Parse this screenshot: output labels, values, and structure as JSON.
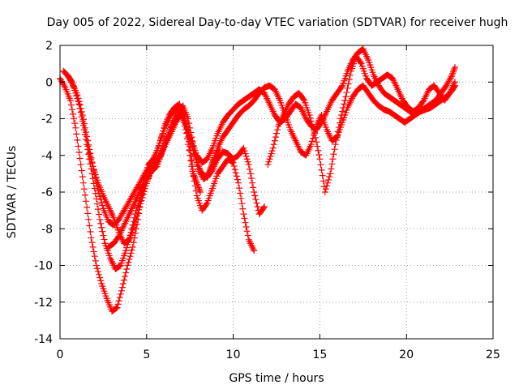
{
  "chart_data": {
    "type": "scatter",
    "title": "Day 005 of 2022, Sidereal Day-to-day VTEC variation (SDTVAR) for receiver hugh",
    "xlabel": "GPS time / hours",
    "ylabel": "SDTVAR / TECUs",
    "xlim": [
      0,
      25
    ],
    "ylim": [
      -14,
      2
    ],
    "xticks": [
      0,
      5,
      10,
      15,
      20,
      25
    ],
    "yticks": [
      -14,
      -12,
      -10,
      -8,
      -6,
      -4,
      -2,
      0,
      2
    ],
    "grid": true,
    "marker": "+",
    "color": "#ff0000",
    "series": [
      {
        "x": [
          0.0,
          0.3,
          0.6,
          0.9,
          1.2,
          1.5,
          1.8,
          2.1,
          2.4,
          2.7,
          3.0,
          3.3,
          3.6,
          3.9,
          4.2,
          4.5,
          4.8,
          5.1,
          5.4,
          5.7,
          6.0,
          6.3,
          6.6,
          6.9,
          7.2,
          7.5,
          7.7,
          7.9,
          8.1
        ],
        "y": [
          0.2,
          -0.3,
          -1.0,
          -2.5,
          -4.5,
          -6.5,
          -8.5,
          -10.0,
          -11.0,
          -11.8,
          -12.5,
          -12.3,
          -11.2,
          -10.0,
          -9.0,
          -7.5,
          -5.5,
          -4.5,
          -4.2,
          -3.5,
          -2.5,
          -1.8,
          -1.4,
          -1.2,
          -2.0,
          -3.5,
          -5.0,
          -5.5,
          -6.0
        ]
      },
      {
        "x": [
          0.2,
          0.5,
          0.8,
          1.1,
          1.4,
          1.7,
          2.0,
          2.3,
          2.6,
          2.9,
          3.2,
          3.5,
          3.8,
          4.1,
          4.4,
          4.7,
          5.0,
          5.3,
          5.6,
          5.9,
          6.2,
          6.5,
          6.8,
          7.1,
          7.4,
          7.7,
          8.0,
          8.3,
          8.6,
          8.9,
          9.2
        ],
        "y": [
          0.6,
          0.3,
          -0.3,
          -1.2,
          -2.6,
          -4.2,
          -5.8,
          -7.5,
          -8.8,
          -9.6,
          -10.2,
          -10.0,
          -9.2,
          -8.2,
          -7.0,
          -6.2,
          -5.4,
          -4.8,
          -4.6,
          -3.8,
          -3.0,
          -2.2,
          -1.6,
          -1.3,
          -2.0,
          -3.5,
          -4.8,
          -5.3,
          -5.0,
          -4.2,
          -3.6
        ]
      },
      {
        "x": [
          0.4,
          0.7,
          1.0,
          1.3,
          1.6,
          1.9,
          2.2,
          2.5,
          2.8,
          3.1,
          3.4,
          3.7,
          4.0,
          4.3,
          4.6,
          4.9,
          5.2,
          5.5,
          5.8,
          6.1,
          6.4,
          6.7,
          7.0,
          7.3,
          7.6,
          7.9,
          8.2,
          8.5,
          8.8,
          9.1,
          9.4,
          9.7,
          10.0,
          10.3,
          10.6,
          10.9,
          11.2
        ],
        "y": [
          0.4,
          0.0,
          -0.7,
          -1.8,
          -3.2,
          -4.6,
          -5.9,
          -6.9,
          -7.6,
          -7.8,
          -7.5,
          -7.0,
          -6.5,
          -6.0,
          -5.5,
          -5.0,
          -4.5,
          -4.0,
          -3.2,
          -2.4,
          -1.8,
          -1.4,
          -1.6,
          -2.8,
          -4.6,
          -6.2,
          -7.0,
          -6.6,
          -5.8,
          -5.0,
          -4.6,
          -4.2,
          -4.4,
          -5.5,
          -7.2,
          -8.6,
          -9.2
        ]
      },
      {
        "x": [
          1.6,
          1.9,
          2.2,
          2.5,
          2.8,
          3.1,
          3.4,
          3.7,
          4.0,
          4.3,
          4.6,
          4.9,
          5.2,
          5.5,
          5.8,
          6.1,
          6.4,
          6.7,
          7.0,
          7.3,
          7.6,
          7.9,
          8.2,
          8.5,
          8.8,
          9.1,
          9.4,
          9.7,
          10.0,
          10.3,
          10.6,
          10.9,
          11.2,
          11.5,
          11.8
        ],
        "y": [
          -3.5,
          -4.6,
          -5.5,
          -6.2,
          -6.8,
          -7.4,
          -8.2,
          -8.8,
          -8.6,
          -7.8,
          -6.8,
          -5.8,
          -5.0,
          -4.6,
          -4.0,
          -3.2,
          -2.5,
          -2.0,
          -1.8,
          -2.4,
          -3.4,
          -4.4,
          -5.0,
          -5.2,
          -4.8,
          -4.2,
          -3.8,
          -3.9,
          -4.2,
          -4.0,
          -3.6,
          -4.5,
          -6.0,
          -7.2,
          -6.8
        ]
      },
      {
        "x": [
          2.8,
          3.1,
          3.4,
          3.7,
          4.0,
          4.3,
          4.6,
          4.9,
          5.2,
          5.5,
          5.8,
          6.1,
          6.4,
          6.7,
          7.0,
          7.3,
          7.6,
          7.9,
          8.2,
          8.5,
          8.8,
          9.1,
          9.4,
          9.7,
          10.0,
          10.3,
          10.6,
          10.9,
          11.2,
          11.5,
          11.8,
          12.1,
          12.4,
          12.7,
          13.0,
          13.3,
          13.6,
          13.9,
          14.2,
          14.5,
          14.8,
          15.1,
          15.4,
          15.7,
          16.0,
          16.3,
          16.6,
          16.9,
          17.2,
          17.5,
          17.8,
          18.1,
          18.4,
          18.7,
          19.0,
          19.3,
          19.6,
          19.9,
          20.2,
          20.5,
          20.8,
          21.1,
          21.4,
          21.7,
          22.0,
          22.3,
          22.6,
          22.8
        ],
        "y": [
          -9.0,
          -8.8,
          -8.4,
          -7.8,
          -7.2,
          -6.6,
          -6.0,
          -5.4,
          -4.8,
          -4.4,
          -4.0,
          -3.4,
          -2.8,
          -2.2,
          -1.7,
          -2.3,
          -3.2,
          -4.0,
          -4.4,
          -4.2,
          -3.6,
          -2.8,
          -2.2,
          -1.8,
          -1.5,
          -1.2,
          -1.0,
          -0.8,
          -0.6,
          -0.4,
          -0.6,
          -1.2,
          -1.8,
          -2.2,
          -2.0,
          -1.6,
          -1.2,
          -1.4,
          -2.0,
          -2.4,
          -2.6,
          -2.2,
          -1.6,
          -1.0,
          -0.6,
          -0.2,
          0.6,
          1.2,
          1.6,
          1.8,
          1.2,
          0.4,
          -0.2,
          -0.6,
          -0.8,
          -1.0,
          -1.2,
          -1.4,
          -1.6,
          -1.7,
          -1.6,
          -1.4,
          -1.2,
          -1.0,
          -0.6,
          -0.2,
          0.3,
          0.8
        ]
      },
      {
        "x": [
          8.5,
          8.8,
          9.1,
          9.4,
          9.7,
          10.0,
          10.3,
          10.6,
          10.9,
          11.2,
          11.5,
          11.8,
          12.1,
          12.4,
          12.7,
          13.0,
          13.3,
          13.6,
          13.9,
          14.2,
          14.5,
          14.8,
          15.1,
          15.4,
          15.7,
          16.0,
          16.3,
          16.6,
          16.9,
          17.2,
          17.5,
          17.8,
          18.1,
          18.4,
          18.7,
          19.0,
          19.3,
          19.6,
          19.9,
          20.2,
          20.5,
          20.8,
          21.1,
          21.4,
          21.7,
          22.0,
          22.3,
          22.6,
          22.8
        ],
        "y": [
          -5.2,
          -4.4,
          -3.6,
          -3.0,
          -2.6,
          -2.2,
          -1.8,
          -1.5,
          -1.3,
          -1.0,
          -0.6,
          -0.3,
          -0.2,
          -0.4,
          -1.0,
          -1.8,
          -2.6,
          -3.2,
          -3.8,
          -4.0,
          -3.4,
          -2.4,
          -1.8,
          -2.6,
          -3.2,
          -3.0,
          -2.2,
          -1.4,
          -0.8,
          -0.4,
          -0.2,
          -0.6,
          -1.0,
          -1.3,
          -1.5,
          -1.6,
          -1.8,
          -2.0,
          -2.2,
          -2.0,
          -1.8,
          -1.6,
          -1.5,
          -1.4,
          -1.2,
          -1.0,
          -0.8,
          -0.5,
          -0.2
        ]
      },
      {
        "x": [
          12.0,
          12.3,
          12.6,
          12.9,
          13.2,
          13.5,
          13.8,
          14.1,
          14.4,
          14.7,
          15.0,
          15.3,
          15.6,
          15.9,
          16.2,
          16.5,
          16.8,
          17.1,
          17.4,
          17.7,
          18.0,
          18.3,
          18.6,
          18.9,
          19.2,
          19.5,
          19.8,
          20.1,
          20.4,
          20.7,
          21.0,
          21.3,
          21.6,
          21.9,
          22.2,
          22.5,
          22.8
        ],
        "y": [
          -4.5,
          -3.6,
          -2.4,
          -1.8,
          -1.2,
          -0.8,
          -0.6,
          -1.0,
          -1.8,
          -2.8,
          -4.2,
          -6.0,
          -5.0,
          -3.4,
          -2.0,
          -0.8,
          0.6,
          1.4,
          1.0,
          0.2,
          -0.2,
          0.0,
          0.2,
          0.4,
          0.2,
          -0.4,
          -1.0,
          -1.4,
          -1.6,
          -1.4,
          -1.0,
          -0.4,
          -0.2,
          -0.6,
          -1.0,
          -0.6,
          0.0
        ]
      }
    ]
  }
}
